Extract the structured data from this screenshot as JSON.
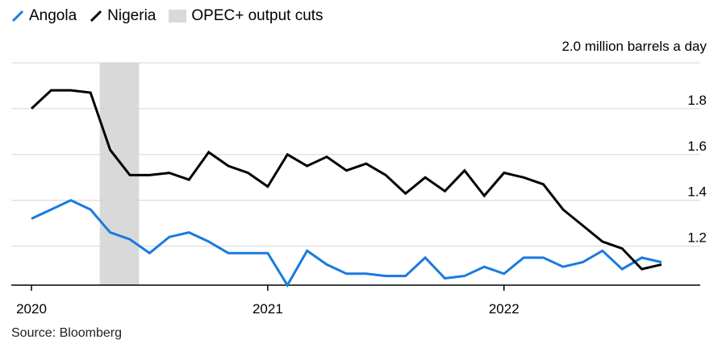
{
  "legend": {
    "items": [
      {
        "label": "Angola",
        "color": "#1a7ae0",
        "icon": "diagonal-line-icon"
      },
      {
        "label": "Nigeria",
        "color": "#000000",
        "icon": "diagonal-line-icon"
      },
      {
        "label": "OPEC+ output cuts",
        "color": "#d9d9d9",
        "icon": "shaded-box-icon"
      }
    ]
  },
  "source": "Source: Bloomberg",
  "chart_data": {
    "type": "line",
    "ylabel": "2.0 million barrels a day",
    "ylim": [
      1.03,
      2.0
    ],
    "y_ticks": [
      {
        "value": 2.0,
        "label": ""
      },
      {
        "value": 1.8,
        "label": "1.8"
      },
      {
        "value": 1.6,
        "label": "1.6"
      },
      {
        "value": 1.4,
        "label": "1.4"
      },
      {
        "value": 1.2,
        "label": "1.2"
      }
    ],
    "x_start": "2020-01",
    "x_end": "2022-10",
    "x_ticks": [
      {
        "label": "2020",
        "x": "2020-01"
      },
      {
        "label": "2021",
        "x": "2021-01"
      },
      {
        "label": "2022",
        "x": "2022-01"
      }
    ],
    "shaded_region": {
      "label": "OPEC+ output cuts",
      "start": "2020-04-15",
      "end": "2020-06-15",
      "color": "#d9d9d9"
    },
    "grid": "horizontal",
    "x": [
      "2020-01",
      "2020-02",
      "2020-03",
      "2020-04",
      "2020-05",
      "2020-06",
      "2020-07",
      "2020-08",
      "2020-09",
      "2020-10",
      "2020-11",
      "2020-12",
      "2021-01",
      "2021-02",
      "2021-03",
      "2021-04",
      "2021-05",
      "2021-06",
      "2021-07",
      "2021-08",
      "2021-09",
      "2021-10",
      "2021-11",
      "2021-12",
      "2022-01",
      "2022-02",
      "2022-03",
      "2022-04",
      "2022-05",
      "2022-06",
      "2022-07",
      "2022-08",
      "2022-09"
    ],
    "series": [
      {
        "name": "Angola",
        "color": "#1a7ae0",
        "values": [
          1.32,
          1.36,
          1.4,
          1.36,
          1.26,
          1.23,
          1.17,
          1.24,
          1.26,
          1.22,
          1.17,
          1.17,
          1.17,
          1.03,
          1.18,
          1.12,
          1.08,
          1.08,
          1.07,
          1.07,
          1.15,
          1.06,
          1.07,
          1.11,
          1.08,
          1.15,
          1.15,
          1.11,
          1.13,
          1.18,
          1.1,
          1.15,
          1.13
        ]
      },
      {
        "name": "Nigeria",
        "color": "#000000",
        "values": [
          1.8,
          1.88,
          1.88,
          1.87,
          1.62,
          1.51,
          1.51,
          1.52,
          1.49,
          1.61,
          1.55,
          1.52,
          1.46,
          1.6,
          1.55,
          1.59,
          1.53,
          1.56,
          1.51,
          1.43,
          1.5,
          1.44,
          1.53,
          1.42,
          1.52,
          1.5,
          1.47,
          1.36,
          1.29,
          1.22,
          1.19,
          1.1,
          1.12
        ]
      }
    ]
  }
}
